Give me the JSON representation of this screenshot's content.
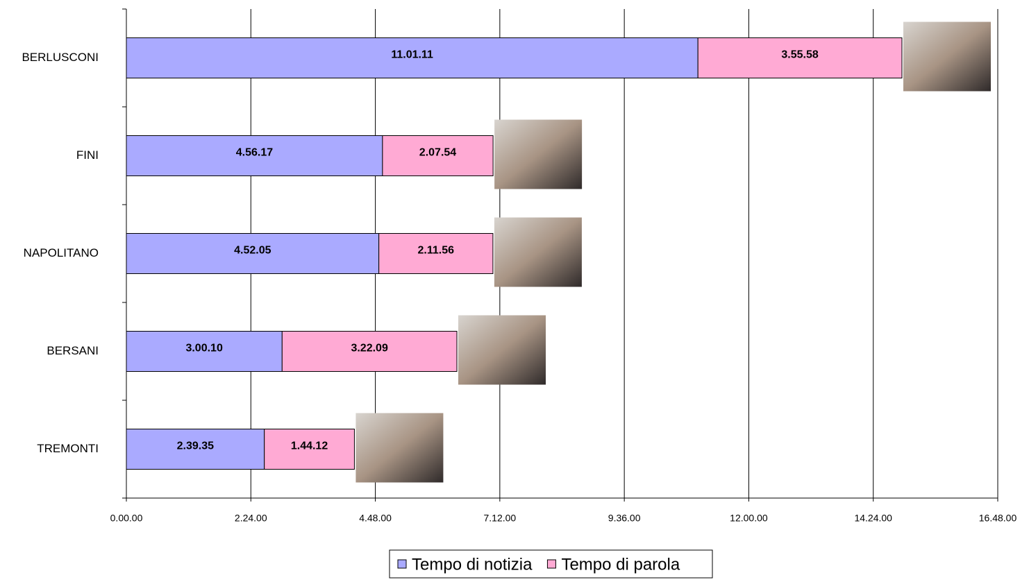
{
  "chart_data": {
    "type": "stacked_barh",
    "categories": [
      "BERLUSCONI",
      "FINI",
      "NAPOLITANO",
      "BERSANI",
      "TREMONTI"
    ],
    "series": [
      {
        "name": "Tempo di notizia",
        "color": "#aaaaff",
        "values": [
          39671,
          17777,
          17525,
          10810,
          9575
        ],
        "value_labels": [
          "11.01.11",
          "4.56.17",
          "4.52.05",
          "3.00.10",
          "2.39.35"
        ]
      },
      {
        "name": "Tempo di parola",
        "color": "#ffaad4",
        "values": [
          14158,
          7674,
          7916,
          12129,
          6252
        ],
        "value_labels": [
          "3.55.58",
          "2.07.54",
          "2.11.56",
          "3.22.09",
          "1.44.12"
        ]
      }
    ],
    "xlim": [
      0,
      60480
    ],
    "xticks": [
      {
        "value": 0,
        "label": "0.00.00"
      },
      {
        "value": 8640,
        "label": "2.24.00"
      },
      {
        "value": 17280,
        "label": "4.48.00"
      },
      {
        "value": 25920,
        "label": "7.12.00"
      },
      {
        "value": 34560,
        "label": "9.36.00"
      },
      {
        "value": 43200,
        "label": "12.00.00"
      },
      {
        "value": 51840,
        "label": "14.24.00"
      },
      {
        "value": 60480,
        "label": "16.48.00"
      }
    ],
    "grid": true
  }
}
